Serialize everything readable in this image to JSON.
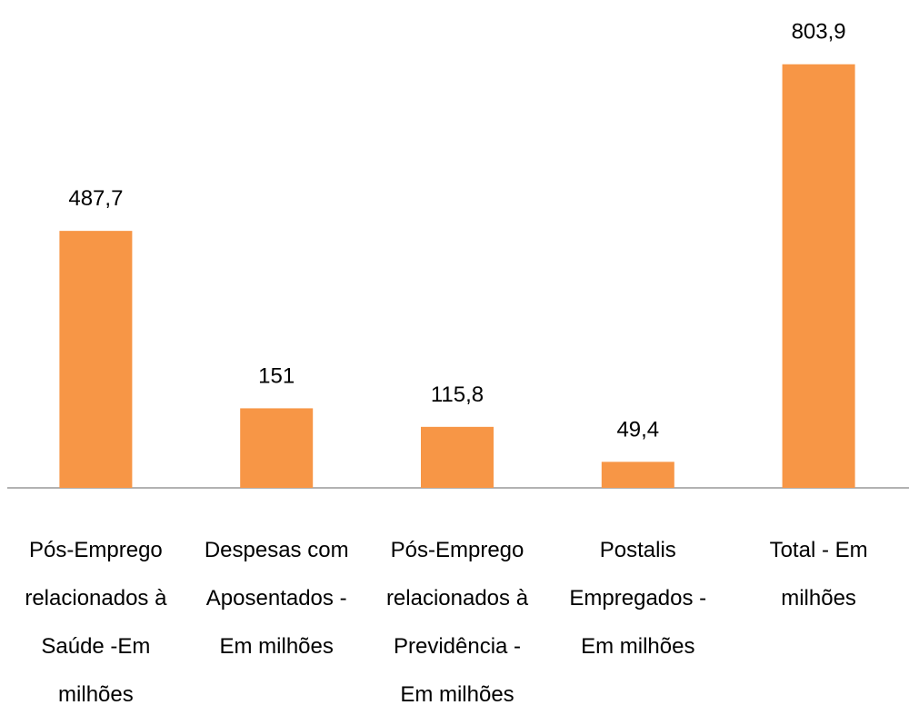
{
  "chart_data": {
    "type": "bar",
    "categories": [
      "Pós-Emprego relacionados à Saúde -Em milhões",
      "Despesas com Aposentados - Em milhões",
      "Pós-Emprego relacionados à Previdência - Em milhões",
      "Postalis Empregados - Em milhões",
      "Total - Em milhões"
    ],
    "values": [
      487.7,
      151,
      115.8,
      49.4,
      803.9
    ],
    "value_labels": [
      "487,7",
      "151",
      "115,8",
      "49,4",
      "803,9"
    ],
    "color": "#f79646",
    "ylim": [
      0,
      900
    ]
  }
}
